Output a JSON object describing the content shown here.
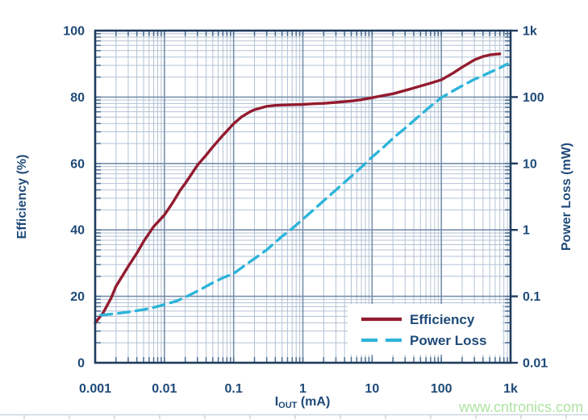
{
  "page": {
    "watermark": "www.cntronics.com"
  },
  "colors": {
    "axis_border": "#1e3c5e",
    "tick_label": "#1f4a78",
    "grid_minor": "#b3c3d6",
    "grid_major": "#7890ad",
    "stub_tick": "#4a6c92",
    "efficiency_line": "#931b2f",
    "power_loss_line": "#2db4da",
    "watermark_green": "#aee3a2",
    "page_rule": "#ccd5dd",
    "legend_bg": "#ffffff"
  },
  "chart_data": {
    "type": "line",
    "title": "",
    "x_axis": {
      "label_main": "I",
      "label_sub": "OUT",
      "label_unit": " (mA)",
      "scale": "log",
      "min": 0.001,
      "max": 1000,
      "ticks": [
        0.001,
        0.01,
        0.1,
        1,
        10,
        100,
        1000
      ],
      "tick_labels": [
        "0.001",
        "0.01",
        "0.1",
        "1",
        "10",
        "100",
        "1k"
      ]
    },
    "y_left_axis": {
      "label": "Efficiency (%)",
      "scale": "linear",
      "min": 0,
      "max": 100,
      "ticks": [
        0,
        20,
        40,
        60,
        80,
        100
      ],
      "tick_labels": [
        "0",
        "20",
        "40",
        "60",
        "80",
        "100"
      ]
    },
    "y_right_axis": {
      "label": "Power Loss (mW)",
      "scale": "log",
      "min": 0.01,
      "max": 1000,
      "ticks": [
        0.01,
        0.1,
        1,
        10,
        100,
        1000
      ],
      "tick_labels": [
        "0.01",
        "0.1",
        "1",
        "10",
        "100",
        "1k"
      ]
    },
    "grid": {
      "on": true,
      "minor_log_divisions": true
    },
    "legend": {
      "position": "bottom-right",
      "items": [
        {
          "label": "Efficiency",
          "style": "solid",
          "color": "#931b2f"
        },
        {
          "label": "Power Loss",
          "style": "dashed",
          "color": "#2db4da"
        }
      ]
    },
    "series": [
      {
        "name": "Efficiency",
        "axis": "left",
        "style": "solid",
        "color": "#931b2f",
        "points": [
          [
            0.001,
            12
          ],
          [
            0.0013,
            15
          ],
          [
            0.0017,
            19.5
          ],
          [
            0.002,
            23
          ],
          [
            0.003,
            29
          ],
          [
            0.004,
            33
          ],
          [
            0.005,
            36.5
          ],
          [
            0.007,
            41
          ],
          [
            0.01,
            44.5
          ],
          [
            0.013,
            48
          ],
          [
            0.017,
            52
          ],
          [
            0.02,
            54
          ],
          [
            0.03,
            59.5
          ],
          [
            0.04,
            62.5
          ],
          [
            0.05,
            65
          ],
          [
            0.07,
            68.5
          ],
          [
            0.1,
            72
          ],
          [
            0.13,
            74
          ],
          [
            0.17,
            75.5
          ],
          [
            0.2,
            76.2
          ],
          [
            0.3,
            77.2
          ],
          [
            0.4,
            77.5
          ],
          [
            0.5,
            77.6
          ],
          [
            0.7,
            77.7
          ],
          [
            1,
            77.8
          ],
          [
            1.5,
            78
          ],
          [
            2,
            78.1
          ],
          [
            3,
            78.4
          ],
          [
            5,
            78.8
          ],
          [
            7,
            79.2
          ],
          [
            10,
            79.8
          ],
          [
            15,
            80.5
          ],
          [
            20,
            81
          ],
          [
            30,
            82
          ],
          [
            50,
            83.3
          ],
          [
            70,
            84.2
          ],
          [
            100,
            85.2
          ],
          [
            150,
            87.3
          ],
          [
            200,
            89
          ],
          [
            300,
            91.2
          ],
          [
            400,
            92.2
          ],
          [
            500,
            92.7
          ],
          [
            600,
            92.9
          ],
          [
            700,
            93
          ]
        ]
      },
      {
        "name": "Power Loss",
        "axis": "right",
        "style": "dashed",
        "color": "#2db4da",
        "points": [
          [
            0.0012,
            0.052
          ],
          [
            0.002,
            0.055
          ],
          [
            0.003,
            0.058
          ],
          [
            0.005,
            0.063
          ],
          [
            0.007,
            0.068
          ],
          [
            0.01,
            0.075
          ],
          [
            0.015,
            0.085
          ],
          [
            0.02,
            0.097
          ],
          [
            0.03,
            0.12
          ],
          [
            0.05,
            0.16
          ],
          [
            0.07,
            0.19
          ],
          [
            0.1,
            0.22
          ],
          [
            0.15,
            0.3
          ],
          [
            0.2,
            0.37
          ],
          [
            0.3,
            0.5
          ],
          [
            0.5,
            0.8
          ],
          [
            0.7,
            1.05
          ],
          [
            1,
            1.45
          ],
          [
            1.5,
            2.1
          ],
          [
            2,
            2.75
          ],
          [
            3,
            4
          ],
          [
            5,
            6.4
          ],
          [
            7,
            8.8
          ],
          [
            10,
            12.5
          ],
          [
            15,
            18
          ],
          [
            20,
            24
          ],
          [
            30,
            34
          ],
          [
            50,
            54
          ],
          [
            70,
            73
          ],
          [
            100,
            98
          ],
          [
            150,
            125
          ],
          [
            200,
            148
          ],
          [
            300,
            185
          ],
          [
            400,
            210
          ],
          [
            500,
            235
          ],
          [
            700,
            275
          ],
          [
            900,
            315
          ]
        ]
      }
    ]
  }
}
